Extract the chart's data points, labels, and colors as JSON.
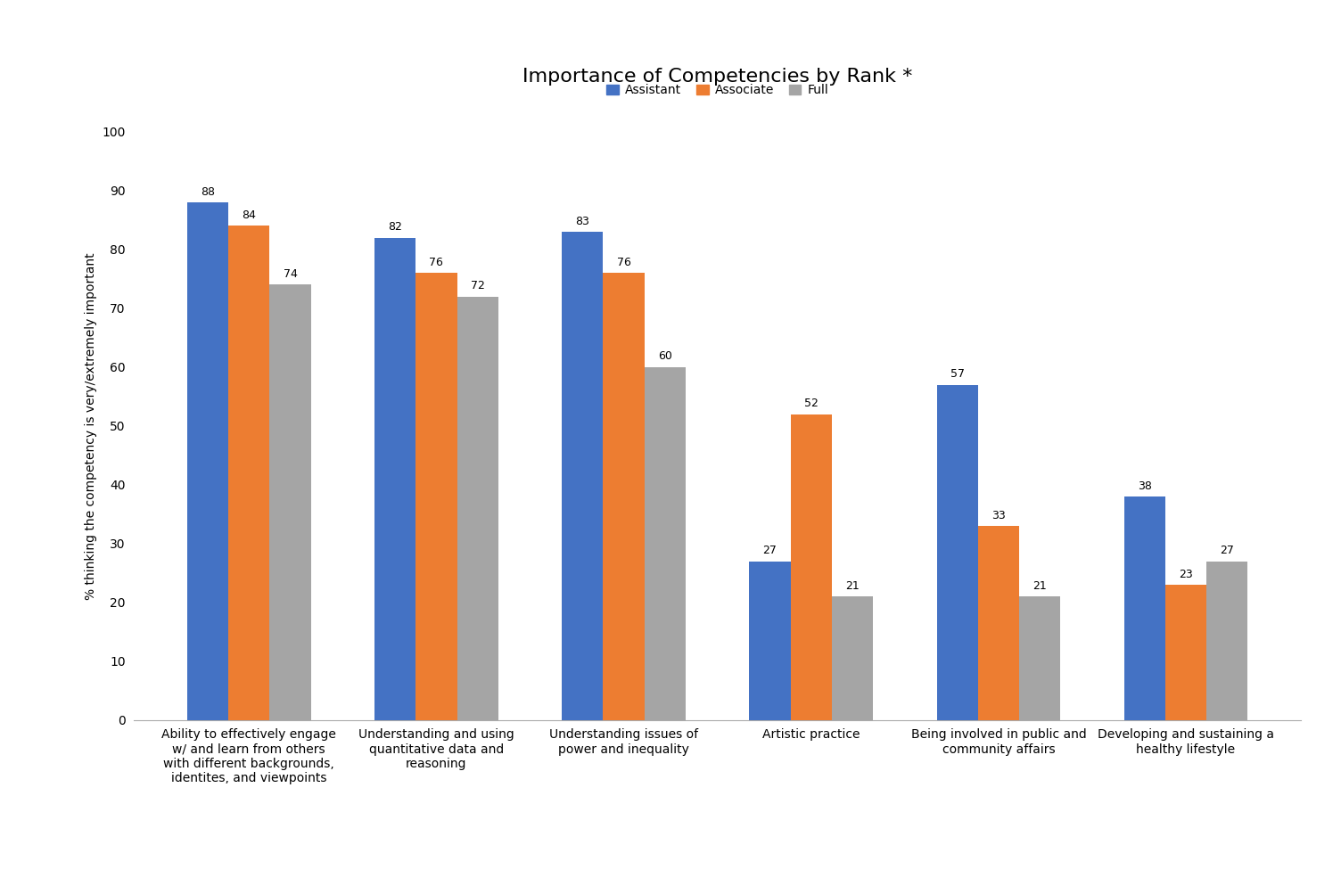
{
  "title": "Importance of Competencies by Rank *",
  "ylabel": "% thinking the competency is very/extremely important",
  "categories": [
    "Ability to effectively engage\nw/ and learn from others\nwith different backgrounds,\nidentites, and viewpoints",
    "Understanding and using\nquantitative data and\nreasoning",
    "Understanding issues of\npower and inequality",
    "Artistic practice",
    "Being involved in public and\ncommunity affairs",
    "Developing and sustaining a\nhealthy lifestyle"
  ],
  "series": {
    "Assistant": [
      88,
      82,
      83,
      27,
      57,
      38
    ],
    "Associate": [
      84,
      76,
      76,
      52,
      33,
      23
    ],
    "Full": [
      74,
      72,
      60,
      21,
      21,
      27
    ]
  },
  "colors": {
    "Assistant": "#4472C4",
    "Associate": "#ED7D31",
    "Full": "#A5A5A5"
  },
  "ylim": [
    0,
    100
  ],
  "yticks": [
    0,
    10,
    20,
    30,
    40,
    50,
    60,
    70,
    80,
    90,
    100
  ],
  "legend_labels": [
    "Assistant",
    "Associate",
    "Full"
  ],
  "bar_width": 0.22,
  "title_fontsize": 16,
  "label_fontsize": 10,
  "tick_fontsize": 10,
  "value_fontsize": 9,
  "background_color": "#FFFFFF"
}
